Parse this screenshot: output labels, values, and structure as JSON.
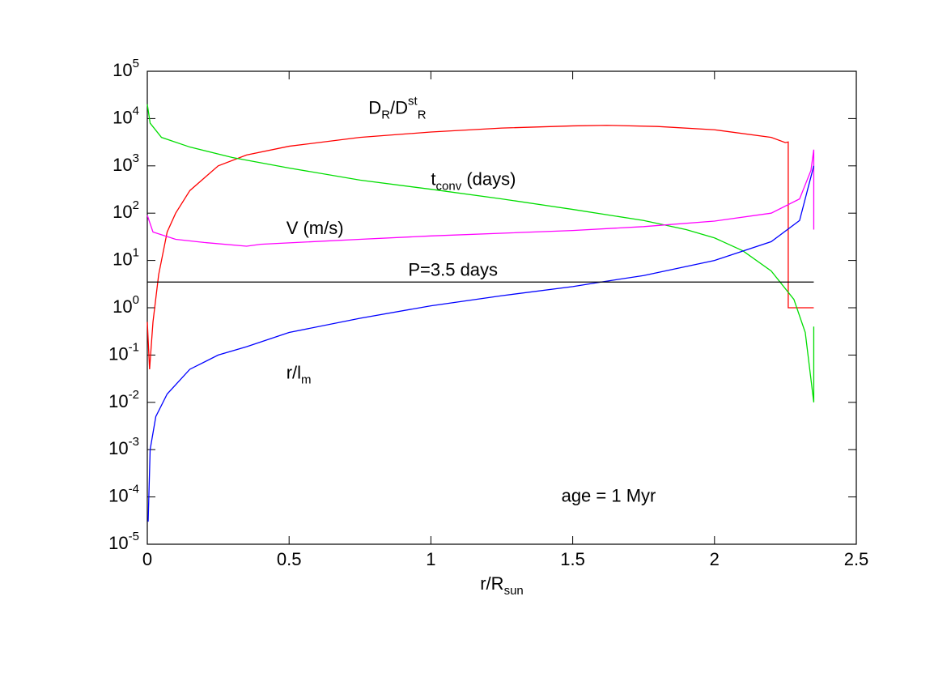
{
  "chart_data": {
    "type": "line",
    "log_y": true,
    "xlim": [
      0,
      2.5
    ],
    "ylim": [
      1e-05,
      100000
    ],
    "xticks": [
      0,
      0.5,
      1,
      1.5,
      2,
      2.5
    ],
    "yticks": [
      {
        "value": 1e-05,
        "label": "10",
        "exponent": "-5"
      },
      {
        "value": 0.0001,
        "label": "10",
        "exponent": "-4"
      },
      {
        "value": 0.001,
        "label": "10",
        "exponent": "-3"
      },
      {
        "value": 0.01,
        "label": "10",
        "exponent": "-2"
      },
      {
        "value": 0.1,
        "label": "10",
        "exponent": "-1"
      },
      {
        "value": 1,
        "label": "10",
        "exponent": "0"
      },
      {
        "value": 10,
        "label": "10",
        "exponent": "1"
      },
      {
        "value": 100,
        "label": "10",
        "exponent": "2"
      },
      {
        "value": 1000,
        "label": "10",
        "exponent": "3"
      },
      {
        "value": 10000,
        "label": "10",
        "exponent": "4"
      },
      {
        "value": 100000,
        "label": "10",
        "exponent": "5"
      }
    ],
    "xlabel": [
      {
        "text": "r/R"
      },
      {
        "text": "sun",
        "shift": "sub"
      }
    ],
    "series": [
      {
        "color": "#ff0000",
        "x": [
          0,
          0.008,
          0.02,
          0.04,
          0.07,
          0.1,
          0.15,
          0.25,
          0.35,
          0.5,
          0.75,
          1,
          1.25,
          1.5,
          1.62,
          1.8,
          2,
          2.2,
          2.25,
          2.26,
          2.26,
          2.35
        ],
        "values": [
          0.5,
          0.05,
          0.5,
          5,
          40,
          100,
          300,
          1000,
          1700,
          2600,
          4000,
          5200,
          6300,
          7000,
          7200,
          6800,
          5800,
          4000,
          3100,
          3200,
          1,
          1
        ]
      },
      {
        "color": "#00dd00",
        "x": [
          0,
          0.01,
          0.05,
          0.15,
          0.3,
          0.5,
          0.75,
          1,
          1.25,
          1.5,
          1.75,
          1.9,
          2,
          2.1,
          2.2,
          2.28,
          2.32,
          2.35,
          2.35
        ],
        "values": [
          20000,
          8000,
          4000,
          2500,
          1500,
          900,
          500,
          320,
          200,
          120,
          70,
          45,
          30,
          16,
          6,
          1.5,
          0.3,
          0.01,
          0.4
        ]
      },
      {
        "color": "#ff00ff",
        "x": [
          0,
          0.02,
          0.1,
          0.2,
          0.35,
          0.4,
          0.75,
          1,
          1.5,
          1.75,
          2,
          2.2,
          2.3,
          2.34,
          2.35,
          2.35
        ],
        "values": [
          90,
          40,
          28,
          24,
          20,
          22,
          28,
          33,
          43,
          52,
          68,
          100,
          200,
          800,
          2200,
          45
        ]
      },
      {
        "color": "#0000ff",
        "x": [
          0.003,
          0.01,
          0.03,
          0.07,
          0.15,
          0.25,
          0.35,
          0.5,
          0.75,
          1,
          1.25,
          1.5,
          1.6,
          1.75,
          2,
          2.2,
          2.3,
          2.35
        ],
        "values": [
          3e-05,
          0.001,
          0.005,
          0.015,
          0.05,
          0.1,
          0.15,
          0.3,
          0.6,
          1.1,
          1.8,
          2.8,
          3.5,
          4.8,
          10,
          25,
          70,
          1000
        ]
      },
      {
        "color": "#000000",
        "x": [
          0,
          2.35
        ],
        "values": [
          3.5,
          3.5
        ]
      }
    ],
    "annotations": [
      {
        "x": 0.78,
        "y": 16000,
        "parts": [
          {
            "text": "D"
          },
          {
            "text": "R",
            "shift": "sub"
          },
          {
            "text": "/D"
          },
          {
            "text": "st",
            "shift": "super"
          },
          {
            "text": "R",
            "shift": "sub"
          }
        ]
      },
      {
        "x": 1.0,
        "y": 500,
        "parts": [
          {
            "text": "t"
          },
          {
            "text": "conv",
            "shift": "sub"
          },
          {
            "text": " (days)"
          }
        ]
      },
      {
        "x": 0.49,
        "y": 46,
        "parts": [
          {
            "text": "V (m/s)"
          }
        ]
      },
      {
        "x": 0.92,
        "y": 6,
        "parts": [
          {
            "text": "P=3.5 days"
          }
        ]
      },
      {
        "x": 0.49,
        "y": 0.04,
        "parts": [
          {
            "text": "r/l"
          },
          {
            "text": "m",
            "shift": "sub"
          }
        ]
      },
      {
        "x": 1.46,
        "y": 0.0001,
        "parts": [
          {
            "text": "age = 1 Myr"
          }
        ]
      }
    ]
  }
}
